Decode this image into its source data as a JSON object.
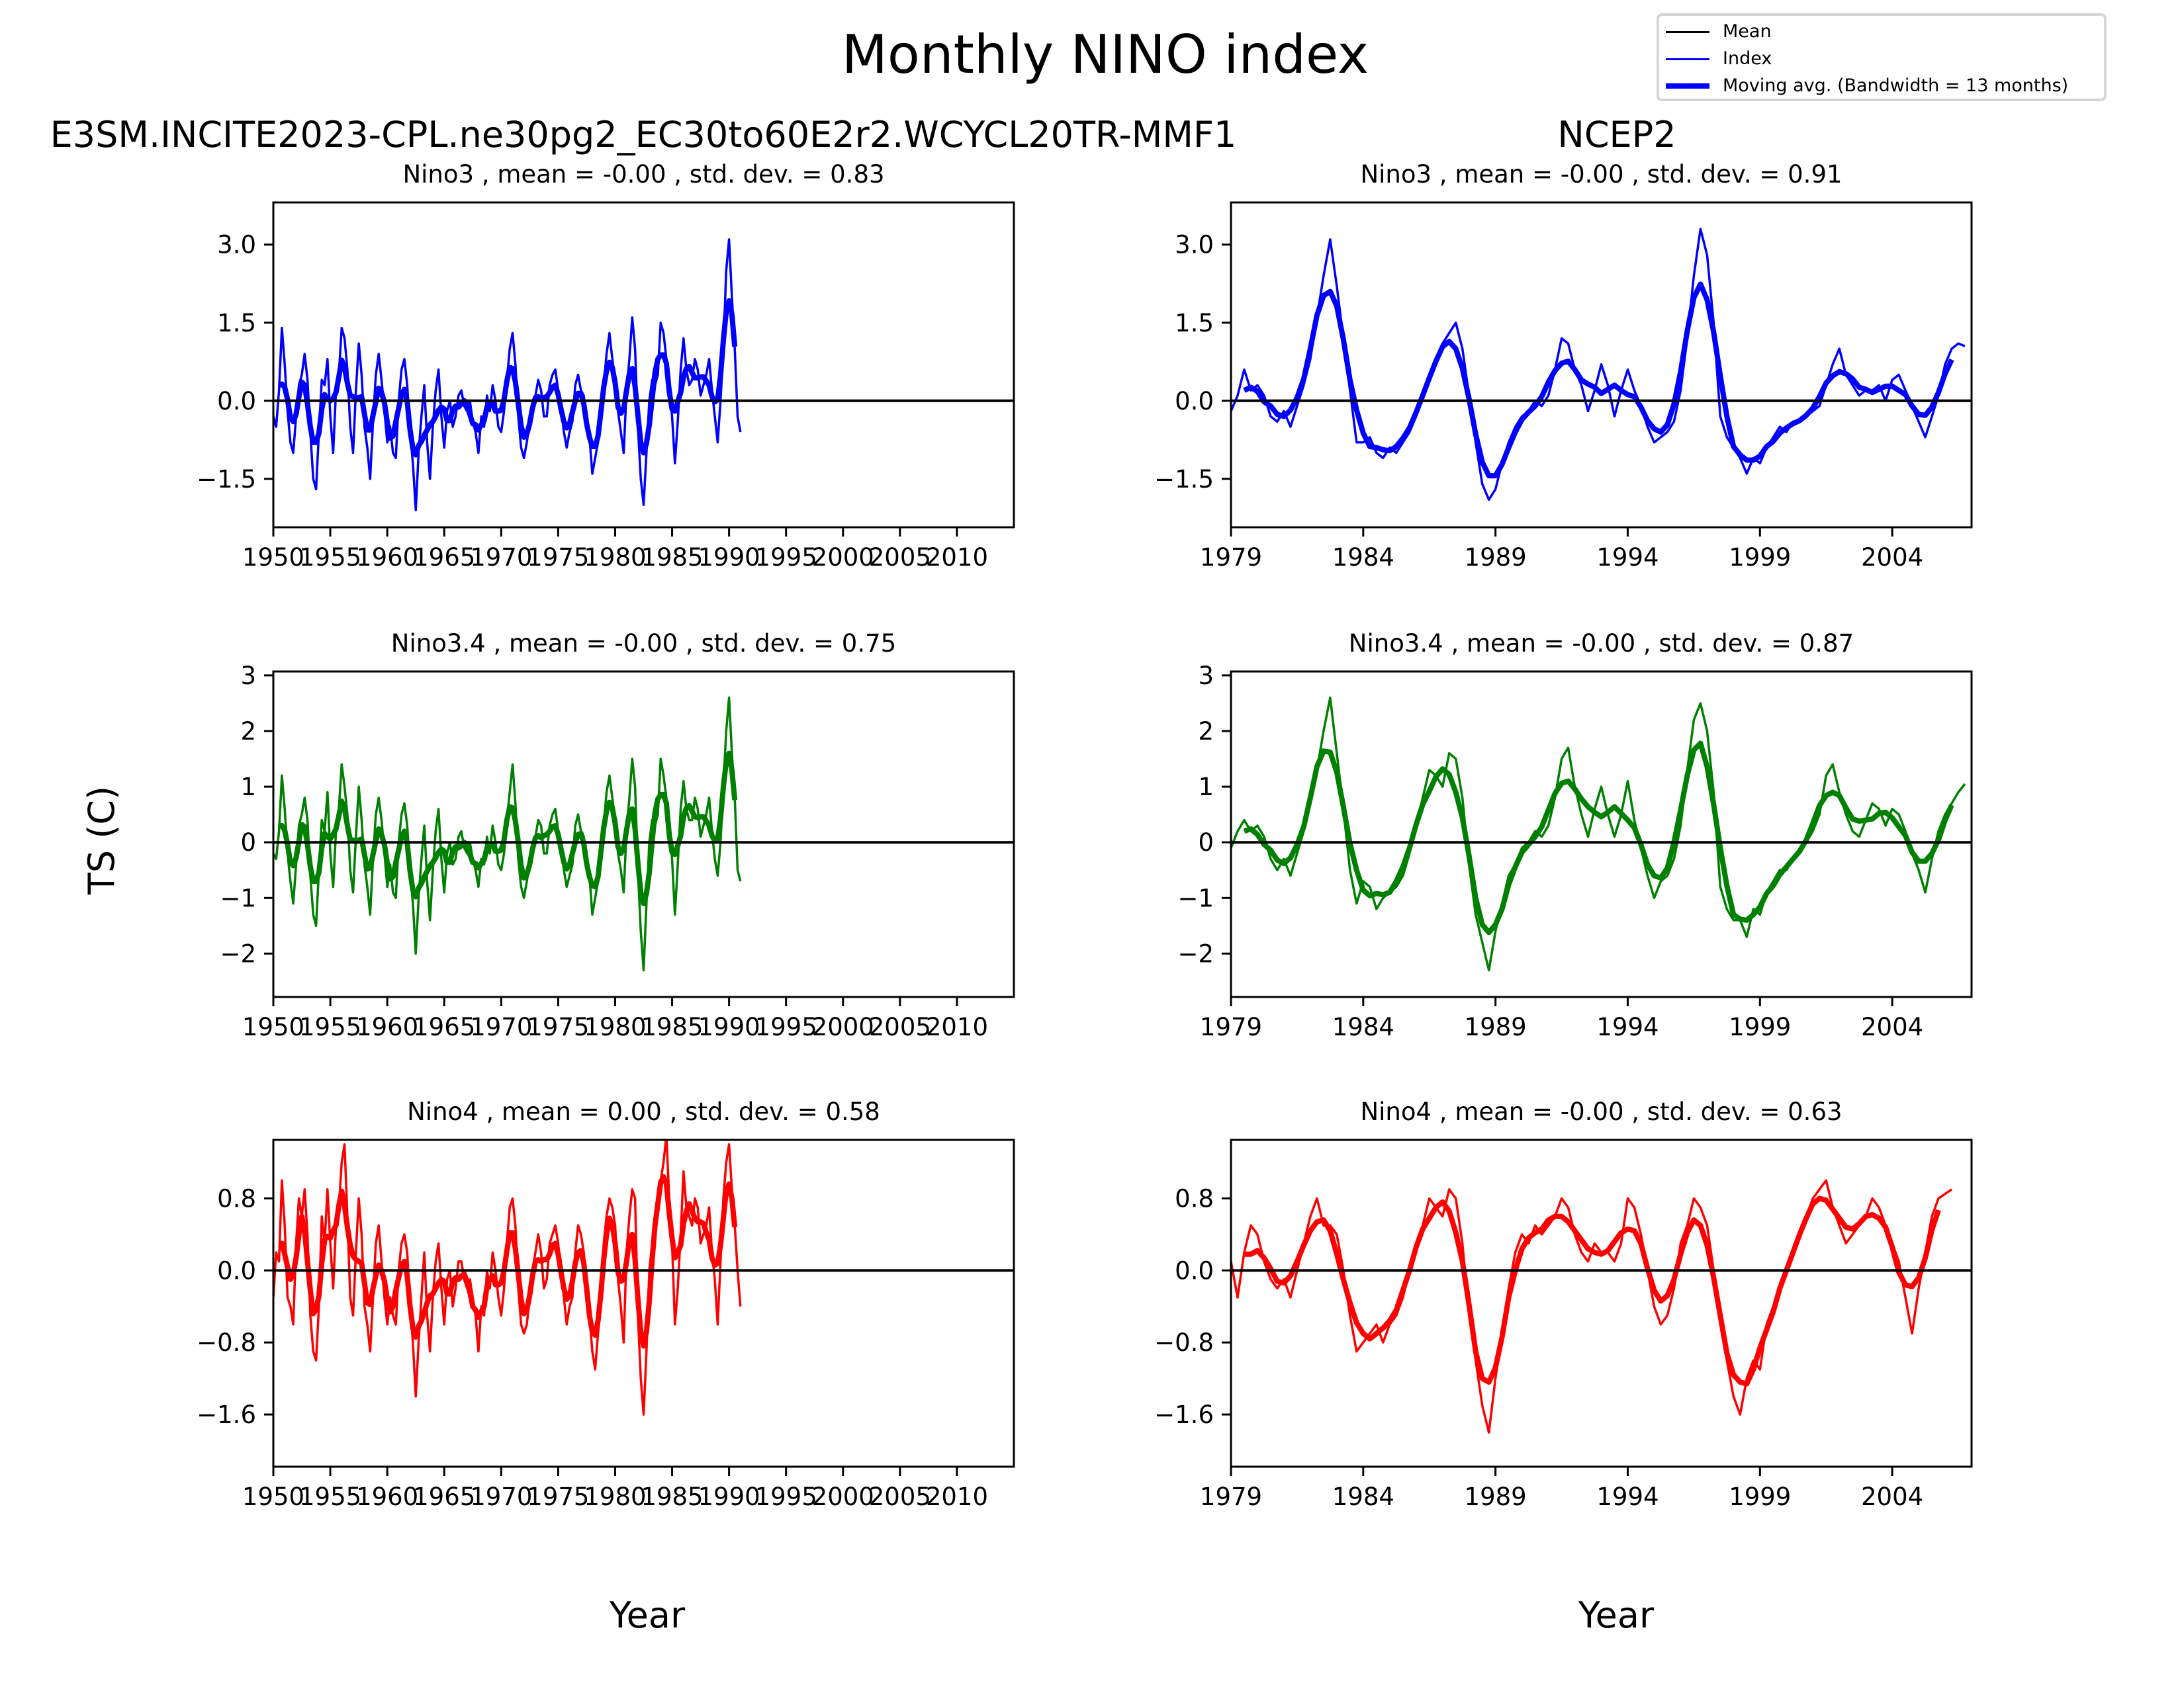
{
  "figure": {
    "title": "Monthly NINO index",
    "column_titles": [
      "E3SM.INCITE2023-CPL.ne30pg2_EC30to60E2r2.WCYCL20TR-MMF1",
      "NCEP2"
    ],
    "ylabel": "TS (C)",
    "xlabel": "Year"
  },
  "legend": {
    "placement": "top-right",
    "entries": [
      {
        "label": "Mean",
        "style": "thin-black"
      },
      {
        "label": "Index",
        "style": "thin-color"
      },
      {
        "label": "Moving avg. (Bandwidth =  13 months)",
        "style": "thick-color"
      }
    ]
  },
  "chart_data": [
    {
      "type": "line",
      "panel": "left-nino3",
      "title": "Nino3 , mean = -0.00 , std. dev. = 0.83",
      "color": "#0000ff",
      "xlim": [
        1950,
        2015
      ],
      "ylim": [
        -2.43,
        3.81
      ],
      "xticks": [
        1950,
        1955,
        1960,
        1965,
        1970,
        1975,
        1980,
        1985,
        1990,
        1995,
        2000,
        2005,
        2010
      ],
      "yticks": [
        -1.5,
        0.0,
        1.5,
        3.0
      ],
      "ytick_labels": [
        "−1.5",
        "0.0",
        "1.5",
        "3.0"
      ],
      "x_start": 1950,
      "x_step": 0.25,
      "mean": 0.0,
      "bandwidth_months": 13,
      "values": [
        -0.3,
        -0.5,
        0.2,
        1.4,
        0.7,
        -0.2,
        -0.8,
        -1.0,
        -0.3,
        0.3,
        0.5,
        0.9,
        0.4,
        -0.6,
        -1.5,
        -1.7,
        -0.6,
        0.4,
        0.3,
        0.8,
        -0.3,
        -1.0,
        0.2,
        0.5,
        1.4,
        1.2,
        0.6,
        -0.5,
        -1.0,
        0.2,
        1.1,
        0.5,
        -0.5,
        -0.9,
        -1.5,
        -0.4,
        0.5,
        0.9,
        0.4,
        -0.2,
        -0.8,
        -0.5,
        -1.0,
        -1.1,
        0.0,
        0.6,
        0.8,
        0.3,
        -0.6,
        -1.2,
        -2.1,
        -1.0,
        -0.3,
        0.3,
        -0.8,
        -1.5,
        -0.5,
        0.2,
        0.6,
        -0.3,
        -0.9,
        -0.2,
        0.0,
        -0.5,
        -0.3,
        0.1,
        0.2,
        -0.1,
        -0.2,
        0.0,
        -0.4,
        -0.6,
        -1.0,
        -0.3,
        -0.5,
        0.1,
        -0.2,
        0.3,
        0.0,
        -0.5,
        -0.6,
        -0.2,
        0.4,
        1.0,
        1.3,
        0.7,
        -0.3,
        -0.9,
        -1.1,
        -0.8,
        -0.4,
        0.0,
        0.1,
        0.4,
        0.2,
        -0.3,
        -0.3,
        0.3,
        0.5,
        0.6,
        0.2,
        -0.1,
        -0.6,
        -0.9,
        -0.6,
        -0.4,
        0.3,
        0.5,
        0.2,
        0.1,
        -0.4,
        -0.7,
        -1.4,
        -1.1,
        -0.8,
        -0.4,
        0.3,
        0.9,
        1.3,
        0.8,
        0.4,
        -0.2,
        -0.6,
        -1.0,
        0.2,
        0.8,
        1.6,
        1.0,
        -0.5,
        -1.5,
        -2.0,
        -1.0,
        0.0,
        0.4,
        0.3,
        0.5,
        1.5,
        1.3,
        0.8,
        0.3,
        -0.3,
        -1.2,
        -0.4,
        0.6,
        1.2,
        0.6,
        0.3,
        0.4,
        0.8,
        0.6,
        0.1,
        0.3,
        0.5,
        0.8,
        0.2,
        -0.3,
        -0.8,
        0.0,
        1.0,
        2.5,
        3.1,
        2.0,
        1.0,
        -0.3,
        -0.6
      ]
    },
    {
      "type": "line",
      "panel": "right-nino3",
      "title": "Nino3 , mean = -0.00 , std. dev. = 0.91",
      "color": "#0000ff",
      "xlim": [
        1979,
        2007
      ],
      "ylim": [
        -2.43,
        3.81
      ],
      "xticks": [
        1979,
        1984,
        1989,
        1994,
        1999,
        2004
      ],
      "yticks": [
        -1.5,
        0.0,
        1.5,
        3.0
      ],
      "ytick_labels": [
        "−1.5",
        "0.0",
        "1.5",
        "3.0"
      ],
      "x_start": 1979,
      "x_step": 0.25,
      "mean": 0.0,
      "bandwidth_months": 13,
      "values": [
        -0.2,
        0.1,
        0.6,
        0.2,
        0.3,
        0.1,
        -0.3,
        -0.4,
        -0.2,
        -0.5,
        -0.1,
        0.3,
        0.8,
        1.6,
        2.4,
        3.1,
        2.2,
        1.2,
        0.2,
        -0.8,
        -0.8,
        -0.7,
        -1.0,
        -1.1,
        -0.9,
        -1.0,
        -0.8,
        -0.6,
        -0.3,
        0.1,
        0.5,
        0.8,
        1.1,
        1.3,
        1.5,
        1.0,
        0.1,
        -0.8,
        -1.6,
        -1.9,
        -1.7,
        -1.2,
        -0.8,
        -0.5,
        -0.3,
        -0.2,
        0.0,
        -0.1,
        0.1,
        0.6,
        1.2,
        1.1,
        0.6,
        0.3,
        -0.2,
        0.2,
        0.7,
        0.3,
        -0.3,
        0.2,
        0.6,
        0.2,
        -0.1,
        -0.5,
        -0.8,
        -0.7,
        -0.6,
        -0.4,
        0.2,
        1.2,
        2.4,
        3.3,
        2.8,
        1.5,
        -0.3,
        -0.7,
        -0.9,
        -1.1,
        -1.4,
        -1.1,
        -1.2,
        -0.9,
        -0.7,
        -0.5,
        -0.6,
        -0.4,
        -0.4,
        -0.3,
        -0.2,
        -0.1,
        0.3,
        0.7,
        1.0,
        0.5,
        0.3,
        0.1,
        0.2,
        0.2,
        0.3,
        0.0,
        0.4,
        0.5,
        0.2,
        -0.1,
        -0.4,
        -0.7,
        -0.3,
        0.1,
        0.7,
        1.0,
        1.1,
        1.05
      ]
    },
    {
      "type": "line",
      "panel": "left-nino34",
      "title": "Nino3.4 , mean = -0.00 , std. dev. = 0.75",
      "color": "#008000",
      "xlim": [
        1950,
        2015
      ],
      "ylim": [
        -2.78,
        3.07
      ],
      "xticks": [
        1950,
        1955,
        1960,
        1965,
        1970,
        1975,
        1980,
        1985,
        1990,
        1995,
        2000,
        2005,
        2010
      ],
      "yticks": [
        -2,
        -1,
        0,
        1,
        2,
        3
      ],
      "ytick_labels": [
        "−2",
        "−1",
        "0",
        "1",
        "2",
        "3"
      ],
      "x_start": 1950,
      "x_step": 0.25,
      "mean": 0.0,
      "bandwidth_months": 13,
      "values": [
        -0.2,
        -0.3,
        0.2,
        1.2,
        0.6,
        -0.2,
        -0.7,
        -1.1,
        -0.4,
        0.3,
        0.5,
        0.8,
        0.4,
        -0.6,
        -1.3,
        -1.5,
        -0.5,
        0.4,
        0.2,
        0.9,
        -0.2,
        -0.8,
        0.2,
        0.6,
        1.4,
        1.0,
        0.5,
        -0.5,
        -0.9,
        0.1,
        1.0,
        0.4,
        -0.4,
        -0.8,
        -1.3,
        -0.3,
        0.5,
        0.8,
        0.4,
        -0.2,
        -0.8,
        -0.4,
        -0.9,
        -1.0,
        0.0,
        0.5,
        0.7,
        0.3,
        -0.5,
        -1.1,
        -2.0,
        -1.0,
        -0.3,
        0.3,
        -0.7,
        -1.4,
        -0.5,
        0.2,
        0.6,
        -0.3,
        -0.9,
        -0.2,
        0.0,
        -0.4,
        -0.3,
        0.1,
        0.2,
        -0.1,
        -0.2,
        0.0,
        -0.3,
        -0.5,
        -0.8,
        -0.3,
        -0.4,
        0.1,
        -0.2,
        0.3,
        0.0,
        -0.4,
        -0.5,
        -0.2,
        0.4,
        0.9,
        1.4,
        0.7,
        -0.3,
        -0.8,
        -1.0,
        -0.7,
        -0.4,
        0.0,
        0.1,
        0.4,
        0.3,
        -0.2,
        -0.2,
        0.3,
        0.5,
        0.6,
        0.2,
        -0.1,
        -0.5,
        -0.8,
        -0.6,
        -0.4,
        0.3,
        0.5,
        0.2,
        0.1,
        -0.3,
        -0.6,
        -1.3,
        -1.0,
        -0.7,
        -0.4,
        0.3,
        0.9,
        1.2,
        0.8,
        0.4,
        -0.2,
        -0.5,
        -0.9,
        0.2,
        0.8,
        1.5,
        1.0,
        -0.5,
        -1.6,
        -2.3,
        -1.1,
        0.0,
        0.4,
        0.3,
        0.5,
        1.5,
        1.2,
        0.8,
        0.3,
        -0.3,
        -1.3,
        -0.4,
        0.6,
        1.1,
        0.6,
        0.4,
        0.4,
        0.8,
        0.6,
        0.1,
        0.3,
        0.5,
        0.8,
        0.2,
        -0.3,
        -0.6,
        0.0,
        1.0,
        2.0,
        2.6,
        1.6,
        0.8,
        -0.5,
        -0.7
      ]
    },
    {
      "type": "line",
      "panel": "right-nino34",
      "title": "Nino3.4 , mean = -0.00 , std. dev. = 0.87",
      "color": "#008000",
      "xlim": [
        1979,
        2007
      ],
      "ylim": [
        -2.78,
        3.07
      ],
      "xticks": [
        1979,
        1984,
        1989,
        1994,
        1999,
        2004
      ],
      "yticks": [
        -2,
        -1,
        0,
        1,
        2,
        3
      ],
      "ytick_labels": [
        "−2",
        "−1",
        "0",
        "1",
        "2",
        "3"
      ],
      "x_start": 1979,
      "x_step": 0.25,
      "mean": 0.0,
      "bandwidth_months": 13,
      "values": [
        -0.1,
        0.2,
        0.4,
        0.2,
        0.3,
        0.1,
        -0.3,
        -0.5,
        -0.3,
        -0.6,
        -0.2,
        0.2,
        0.7,
        1.3,
        2.0,
        2.6,
        1.6,
        0.6,
        -0.5,
        -1.1,
        -0.7,
        -0.8,
        -1.2,
        -1.0,
        -0.9,
        -0.8,
        -0.6,
        -0.2,
        0.3,
        0.8,
        1.3,
        1.2,
        1.0,
        1.6,
        1.5,
        0.8,
        -0.4,
        -1.3,
        -1.8,
        -2.3,
        -1.6,
        -1.1,
        -0.6,
        -0.4,
        -0.1,
        0.0,
        0.2,
        0.1,
        0.3,
        0.8,
        1.5,
        1.7,
        1.0,
        0.5,
        0.1,
        0.6,
        1.0,
        0.5,
        0.1,
        0.5,
        1.1,
        0.4,
        -0.1,
        -0.6,
        -1.0,
        -0.7,
        -0.6,
        -0.3,
        0.3,
        1.3,
        2.2,
        2.5,
        2.0,
        0.9,
        -0.8,
        -1.2,
        -1.4,
        -1.4,
        -1.7,
        -1.2,
        -1.3,
        -0.9,
        -0.7,
        -0.5,
        -0.5,
        -0.3,
        -0.2,
        0.0,
        0.2,
        0.5,
        1.2,
        1.4,
        0.9,
        0.5,
        0.2,
        0.1,
        0.4,
        0.7,
        0.6,
        0.3,
        0.6,
        0.5,
        0.2,
        -0.2,
        -0.5,
        -0.9,
        -0.3,
        0.2,
        0.5,
        0.7,
        0.9,
        1.05
      ]
    },
    {
      "type": "line",
      "panel": "left-nino4",
      "title": "Nino4 , mean = 0.00 , std. dev. = 0.58",
      "color": "#ff0000",
      "xlim": [
        1950,
        2015
      ],
      "ylim": [
        -2.18,
        1.45
      ],
      "xticks": [
        1950,
        1955,
        1960,
        1965,
        1970,
        1975,
        1980,
        1985,
        1990,
        1995,
        2000,
        2005,
        2010
      ],
      "yticks": [
        -1.6,
        -0.8,
        0.0,
        0.8
      ],
      "ytick_labels": [
        "−1.6",
        "−0.8",
        "0.0",
        "0.8"
      ],
      "x_start": 1950,
      "x_step": 0.25,
      "mean": 0.0,
      "bandwidth_months": 13,
      "values": [
        -0.3,
        0.2,
        0.1,
        1.0,
        0.5,
        -0.3,
        -0.4,
        -0.6,
        0.3,
        0.8,
        0.6,
        0.9,
        0.4,
        -0.5,
        -0.9,
        -1.0,
        -0.4,
        0.6,
        0.3,
        0.9,
        0.3,
        -0.2,
        0.5,
        0.7,
        1.2,
        1.4,
        0.6,
        -0.3,
        -0.5,
        0.2,
        0.8,
        0.4,
        -0.4,
        -0.6,
        -0.9,
        -0.3,
        0.3,
        0.5,
        0.1,
        -0.3,
        -0.6,
        -0.3,
        -0.5,
        -0.6,
        0.0,
        0.3,
        0.4,
        0.2,
        -0.4,
        -0.8,
        -1.4,
        -0.8,
        -0.3,
        0.2,
        -0.5,
        -0.9,
        -0.3,
        0.1,
        0.3,
        -0.2,
        -0.6,
        -0.1,
        0.0,
        -0.4,
        -0.2,
        0.1,
        0.1,
        -0.1,
        -0.2,
        -0.1,
        -0.3,
        -0.5,
        -0.9,
        -0.4,
        -0.5,
        0.0,
        -0.2,
        0.2,
        0.0,
        -0.3,
        -0.5,
        -0.2,
        0.3,
        0.7,
        0.8,
        0.5,
        -0.2,
        -0.6,
        -0.7,
        -0.6,
        -0.3,
        0.0,
        0.2,
        0.4,
        0.2,
        -0.2,
        -0.1,
        0.3,
        0.4,
        0.5,
        0.3,
        0.0,
        -0.3,
        -0.6,
        -0.4,
        -0.3,
        0.2,
        0.5,
        0.4,
        0.2,
        -0.2,
        -0.5,
        -0.9,
        -1.1,
        -0.7,
        -0.4,
        0.3,
        0.6,
        0.8,
        0.7,
        0.5,
        -0.1,
        -0.4,
        -0.8,
        0.2,
        0.6,
        0.9,
        0.8,
        -0.5,
        -1.2,
        -1.6,
        -0.9,
        0.0,
        0.3,
        0.5,
        0.7,
        1.0,
        1.2,
        1.5,
        0.8,
        0.3,
        -0.6,
        -0.2,
        0.4,
        1.1,
        0.7,
        0.6,
        0.5,
        0.8,
        0.7,
        0.3,
        0.4,
        0.5,
        0.7,
        0.2,
        -0.1,
        -0.6,
        0.1,
        0.8,
        1.2,
        1.4,
        0.9,
        0.5,
        0.0,
        -0.4
      ]
    },
    {
      "type": "line",
      "panel": "right-nino4",
      "title": "Nino4 , mean = -0.00 , std. dev. = 0.63",
      "color": "#ff0000",
      "xlim": [
        1979,
        2007
      ],
      "ylim": [
        -2.18,
        1.45
      ],
      "xticks": [
        1979,
        1984,
        1989,
        1994,
        1999,
        2004
      ],
      "yticks": [
        -1.6,
        -0.8,
        0.0,
        0.8
      ],
      "ytick_labels": [
        "−1.6",
        "−0.8",
        "0.0",
        "0.8"
      ],
      "x_start": 1979,
      "x_step": 0.25,
      "mean": 0.0,
      "bandwidth_months": 13,
      "values": [
        0.1,
        -0.3,
        0.2,
        0.5,
        0.4,
        0.1,
        -0.1,
        -0.2,
        -0.1,
        -0.3,
        0.0,
        0.3,
        0.6,
        0.8,
        0.5,
        0.5,
        0.4,
        0.0,
        -0.5,
        -0.9,
        -0.8,
        -0.7,
        -0.6,
        -0.8,
        -0.6,
        -0.5,
        -0.3,
        0.0,
        0.3,
        0.5,
        0.8,
        0.7,
        0.6,
        0.9,
        0.8,
        0.3,
        -0.5,
        -1.0,
        -1.5,
        -1.8,
        -1.2,
        -0.7,
        -0.2,
        0.2,
        0.4,
        0.3,
        0.5,
        0.4,
        0.5,
        0.6,
        0.8,
        0.7,
        0.4,
        0.2,
        0.1,
        0.3,
        0.2,
        0.2,
        0.1,
        0.3,
        0.8,
        0.7,
        0.4,
        0.0,
        -0.4,
        -0.6,
        -0.5,
        -0.2,
        0.3,
        0.5,
        0.8,
        0.7,
        0.5,
        0.0,
        -0.6,
        -1.0,
        -1.4,
        -1.6,
        -1.2,
        -1.0,
        -1.1,
        -0.6,
        -0.4,
        -0.2,
        0.0,
        0.2,
        0.4,
        0.6,
        0.8,
        0.9,
        1.0,
        0.7,
        0.5,
        0.3,
        0.4,
        0.5,
        0.6,
        0.8,
        0.7,
        0.5,
        0.3,
        0.1,
        -0.3,
        -0.7,
        -0.2,
        0.2,
        0.6,
        0.8,
        0.85,
        0.9
      ]
    }
  ]
}
